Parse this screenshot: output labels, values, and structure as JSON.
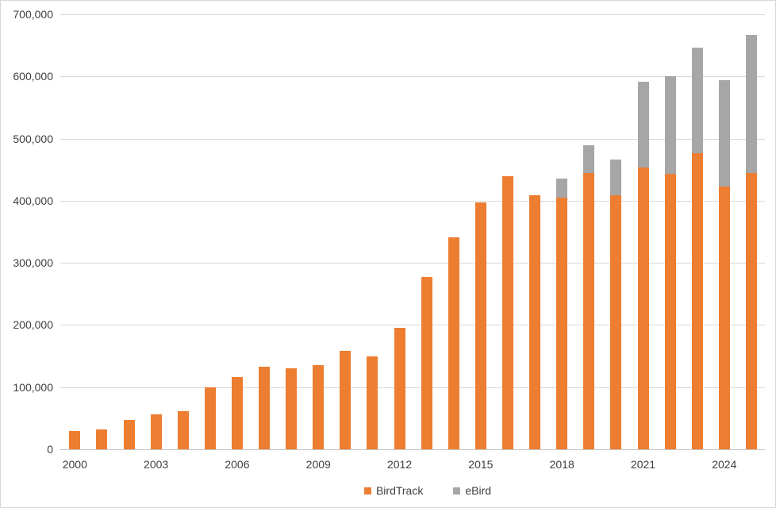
{
  "chart_data": {
    "type": "bar",
    "stacked": true,
    "title": "",
    "xlabel": "",
    "ylabel": "",
    "categories": [
      2000,
      2001,
      2002,
      2003,
      2004,
      2005,
      2006,
      2007,
      2008,
      2009,
      2010,
      2011,
      2012,
      2013,
      2014,
      2015,
      2016,
      2017,
      2018,
      2019,
      2020,
      2021,
      2022,
      2023,
      2024,
      2025
    ],
    "series": [
      {
        "name": "BirdTrack",
        "color": "#ED7D31",
        "values": [
          30000,
          32000,
          47000,
          56000,
          61000,
          100000,
          116000,
          133000,
          130000,
          136000,
          158000,
          150000,
          195000,
          277000,
          341000,
          397000,
          440000,
          409000,
          405000,
          445000,
          409000,
          453000,
          443000,
          476000,
          423000,
          445000
        ]
      },
      {
        "name": "eBird",
        "color": "#A6A6A6",
        "values": [
          0,
          0,
          0,
          0,
          0,
          0,
          0,
          0,
          0,
          0,
          0,
          0,
          0,
          0,
          0,
          0,
          0,
          0,
          31000,
          44000,
          57000,
          138000,
          157000,
          170000,
          171000,
          222000
        ]
      }
    ],
    "ylim": [
      0,
      700000
    ],
    "ytick_interval": 100000,
    "ytick_labels": [
      "0",
      "100,000",
      "200,000",
      "300,000",
      "400,000",
      "500,000",
      "600,000",
      "700,000"
    ],
    "xtick_years": [
      2000,
      2003,
      2006,
      2009,
      2012,
      2015,
      2018,
      2021,
      2024
    ],
    "grid": true,
    "legend_position": "bottom"
  },
  "colors": {
    "background": "#FFFFFF",
    "border": "#D7D7D7",
    "gridline": "#D9D9D9",
    "axis_text": "#3F3F3F"
  }
}
